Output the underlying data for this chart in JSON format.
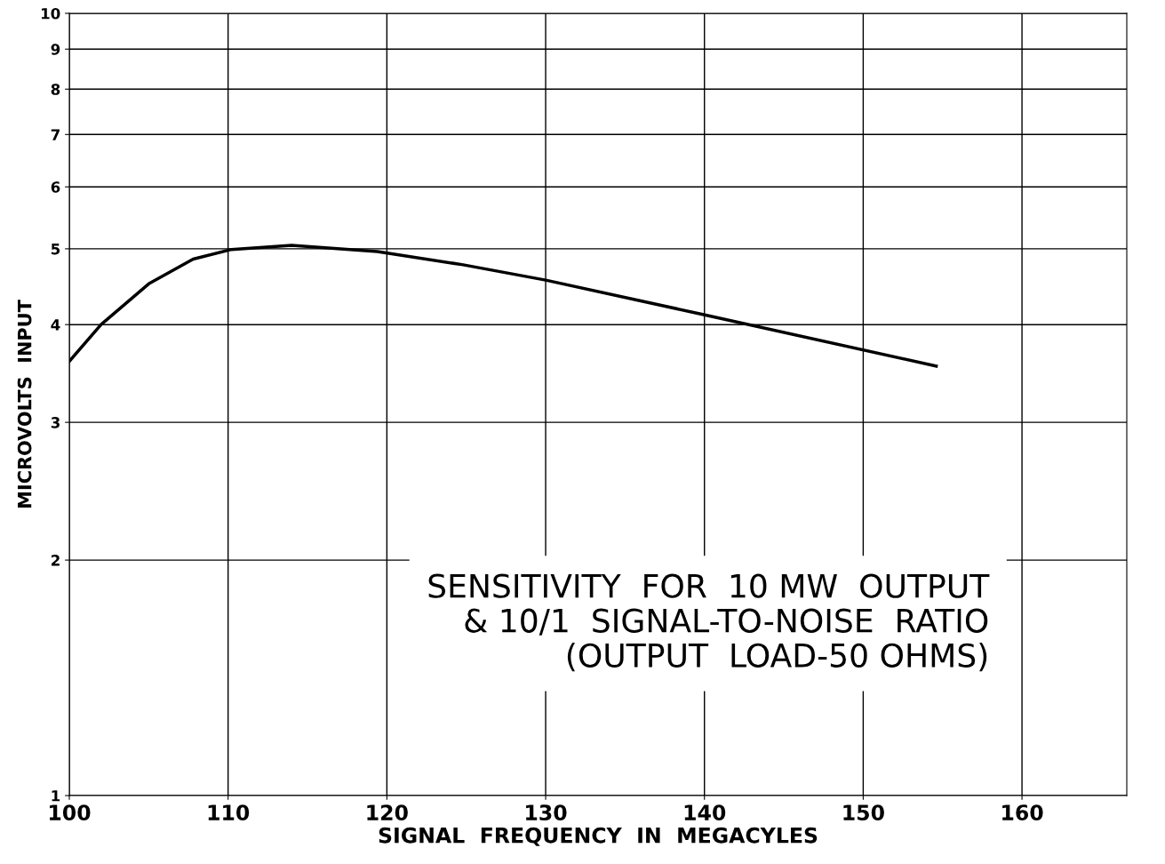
{
  "chart_data": {
    "type": "line",
    "xlabel": "SIGNAL  FREQUENCY  IN  MEGACYLES",
    "ylabel": "MICROVOLTS  INPUT",
    "annotations": [
      "SENSITIVITY  FOR  10 MW  OUTPUT\n& 10/1  SIGNAL-TO-NOISE  RATIO\n(OUTPUT  LOAD-50 OHMS)"
    ],
    "x": [
      100,
      102.0,
      105.0,
      107.8,
      110.2,
      114.0,
      119.4,
      124.8,
      130.0,
      139.7,
      154.6
    ],
    "series": [
      {
        "color": "#000000",
        "values": [
          3.59,
          4.0,
          4.51,
          4.85,
          4.99,
          5.05,
          4.96,
          4.77,
          4.56,
          4.13,
          3.54
        ]
      }
    ],
    "log": "y",
    "xlim": [
      100,
      166.6
    ],
    "xticks": [
      100,
      110,
      120,
      130,
      140,
      150,
      160
    ],
    "ylim": [
      1,
      10
    ],
    "yticks": [
      1,
      2,
      3,
      4,
      5,
      6,
      7,
      8,
      9,
      10
    ],
    "grid": true,
    "marker": "none",
    "line_style": "solid"
  }
}
